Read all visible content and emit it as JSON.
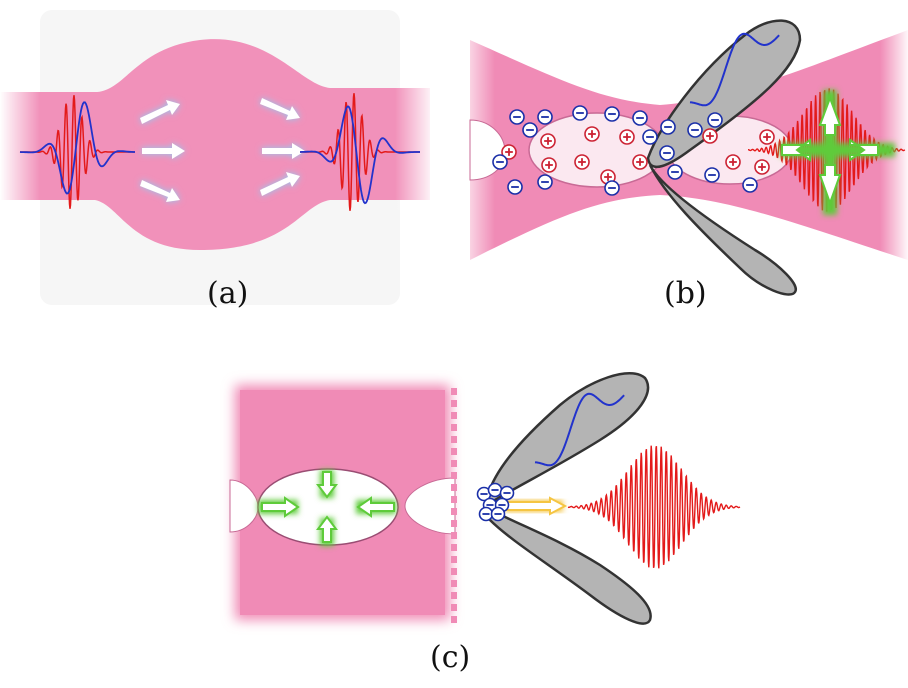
{
  "panels": {
    "a": {
      "label": "(a)"
    },
    "b": {
      "label": "(b)"
    },
    "c": {
      "label": "(c)"
    }
  },
  "symbols": {
    "plus": "+",
    "minus": "−"
  },
  "colors": {
    "plasma": "#f08bb6",
    "plasma_light": "#f9d5e4",
    "bubble_fill": "#fbe8f0",
    "laser_red": "#e31a1a",
    "wave_blue": "#2233cc",
    "arrow_glow": "#8ecbf5",
    "green_arrow": "#5ecb3a",
    "yellow_arrow": "#f5c542",
    "beam_gray": "#b4b4b4",
    "ion_red": "#cc2233",
    "electron_blue": "#1a2fa8"
  },
  "icons": [
    "arrow-icon",
    "ion-icon",
    "electron-icon",
    "electron-beam-icon"
  ]
}
